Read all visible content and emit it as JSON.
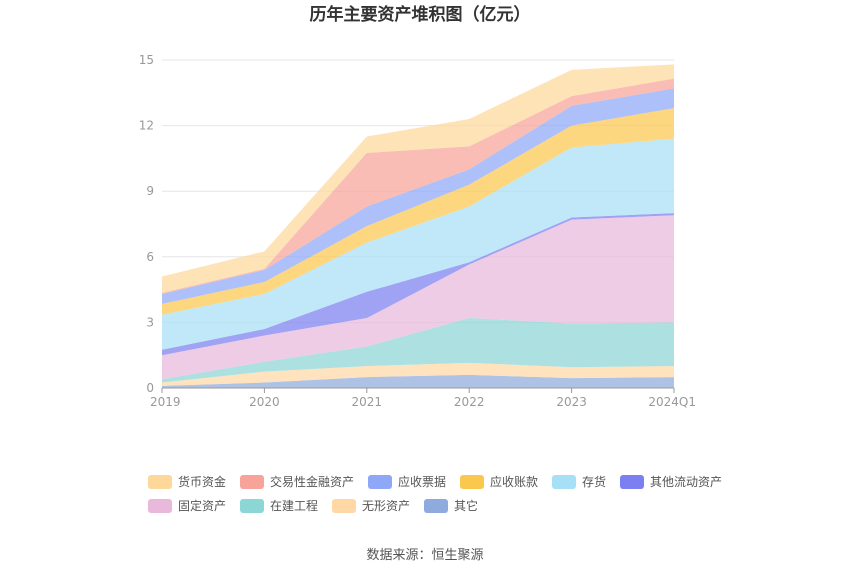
{
  "chart_data": {
    "type": "area",
    "stacked": true,
    "title": "历年主要资产堆积图（亿元）",
    "xlabel": "",
    "ylabel": "",
    "categories": [
      "2019",
      "2020",
      "2021",
      "2022",
      "2023",
      "2024Q1"
    ],
    "ylim": [
      0,
      15
    ],
    "yticks": [
      0,
      3,
      6,
      9,
      12,
      15
    ],
    "grid": true,
    "legend_position": "bottom",
    "series": [
      {
        "name": "其它",
        "color": "#8faadc",
        "values": [
          0.1,
          0.25,
          0.5,
          0.6,
          0.45,
          0.5
        ]
      },
      {
        "name": "无形资产",
        "color": "#ffd8a6",
        "values": [
          0.15,
          0.5,
          0.5,
          0.55,
          0.5,
          0.5
        ]
      },
      {
        "name": "在建工程",
        "color": "#8dd6d6",
        "values": [
          0.15,
          0.45,
          0.9,
          2.05,
          2.0,
          2.0
        ]
      },
      {
        "name": "固定资产",
        "color": "#e8b9db",
        "values": [
          1.1,
          1.2,
          1.3,
          2.45,
          4.75,
          4.9
        ]
      },
      {
        "name": "其他流动资产",
        "color": "#7b7fef",
        "values": [
          0.25,
          0.3,
          1.2,
          0.1,
          0.1,
          0.1
        ]
      },
      {
        "name": "存货",
        "color": "#a7dff7",
        "values": [
          1.6,
          1.6,
          2.25,
          2.55,
          3.2,
          3.4
        ]
      },
      {
        "name": "应收账款",
        "color": "#fbc84f",
        "values": [
          0.5,
          0.55,
          0.75,
          1.0,
          1.0,
          1.4
        ]
      },
      {
        "name": "应收票据",
        "color": "#8ea7f7",
        "values": [
          0.45,
          0.55,
          0.9,
          0.7,
          0.9,
          0.9
        ]
      },
      {
        "name": "交易性金融资产",
        "color": "#f7a39a",
        "values": [
          0.05,
          0.05,
          2.45,
          1.05,
          0.45,
          0.45
        ]
      },
      {
        "name": "货币资金",
        "color": "#fdd89a",
        "values": [
          0.75,
          0.8,
          0.75,
          1.25,
          1.2,
          0.65
        ]
      }
    ],
    "legend_order": [
      "货币资金",
      "交易性金融资产",
      "应收票据",
      "应收账款",
      "存货",
      "其他流动资产",
      "固定资产",
      "在建工程",
      "无形资产",
      "其它"
    ]
  },
  "source": "数据来源：恒生聚源"
}
